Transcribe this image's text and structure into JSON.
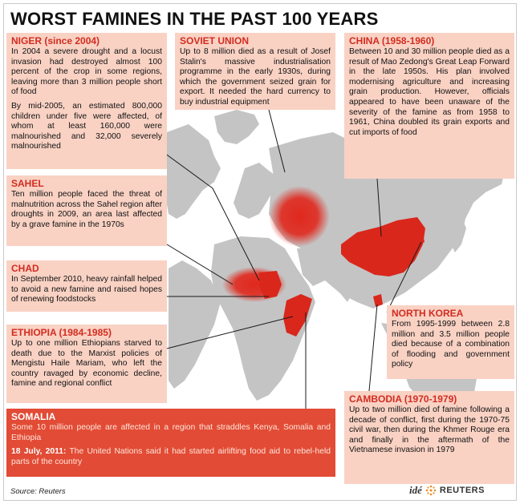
{
  "title": "WORST FAMINES IN THE PAST 100 YEARS",
  "colors": {
    "accent": "#d32c20",
    "box_bg": "#f9d2c4",
    "somalia_bg": "#e24b35",
    "land": "#bfbfbf",
    "ocean": "#ffffff",
    "highlight": "#e0281d"
  },
  "sections": {
    "niger": {
      "heading": "NIGER (since 2004)",
      "p1": "In 2004 a severe drought and a locust invasion had destroyed almost 100 percent of the crop in some regions, leaving more than 3 million people short of food",
      "p2": "By mid-2005, an estimated 800,000 children under five were affected, of whom at least 160,000 were malnourished and 32,000 severely malnourished"
    },
    "soviet": {
      "heading": "SOVIET UNION",
      "p1": "Up to 8 million died as a result of Josef Stalin's massive industrialisation programme in the early 1930s, during which the government seized grain for export. It needed the hard currency to buy industrial equipment"
    },
    "china": {
      "heading": "CHINA (1958-1960)",
      "p1": "Between 10 and 30 million people died as a result of Mao Zedong's Great Leap Forward in the late 1950s. His plan involved modernising agriculture and increasing grain production. However, officials appeared to have been unaware of the severity of the famine as from 1958 to 1961, China doubled its grain exports and cut imports of food"
    },
    "sahel": {
      "heading": "SAHEL",
      "p1": "Ten million people faced the threat of malnutrition across the Sahel region after droughts in 2009, an area last affected by a grave famine in the 1970s"
    },
    "chad": {
      "heading": "CHAD",
      "p1": "In September 2010, heavy rainfall helped to avoid a new famine and raised hopes of renewing foodstocks"
    },
    "ethiopia": {
      "heading": "ETHIOPIA (1984-1985)",
      "p1": "Up to one million Ethiopians starved to death due to the Marxist policies of Mengistu Haile Mariam, who left the country ravaged by economic decline, famine and regional conflict"
    },
    "north_korea": {
      "heading": "NORTH KOREA",
      "p1": "From 1995-1999 between 2.8 million and 3.5 million people died because of a combination of flooding and government policy"
    },
    "cambodia": {
      "heading": "CAMBODIA (1970-1979)",
      "p1": "Up to two million died of famine following a decade of conflict, first during the 1970-75 civil war, then during the Khmer Rouge era and finally in the aftermath of the Vietnamese invasion in 1979"
    },
    "somalia": {
      "heading": "SOMALIA",
      "p1": "Some 10 million people are affected in a region that straddles Kenya, Somalia and Ethiopia",
      "date": "18 July, 2011:",
      "p2": " The United Nations said it had started airlifting food aid to rebel-held parts of the country"
    }
  },
  "source": "Source: Reuters",
  "credit": {
    "ide": "idé",
    "reuters": "REUTERS"
  }
}
